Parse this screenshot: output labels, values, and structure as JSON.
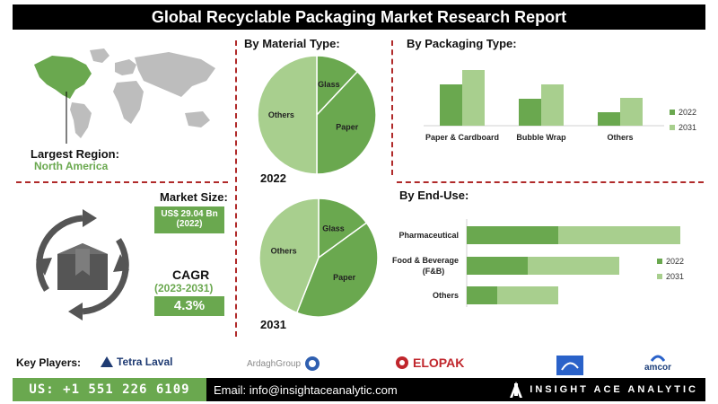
{
  "title": "Global Recyclable Packaging Market Research Report",
  "region": {
    "label": "Largest Region:",
    "value": "North America"
  },
  "market_size": {
    "label": "Market Size:",
    "value": "US$ 29.04 Bn",
    "year": "(2022)"
  },
  "cagr": {
    "label": "CAGR",
    "period": "(2023-2031)",
    "value": "4.3%"
  },
  "colors": {
    "dark_green": "#6aa84f",
    "light_green": "#a8cf8e",
    "dash_red": "#b02a2a"
  },
  "chart_data": [
    {
      "type": "pie",
      "title": "By Material Type:",
      "year_label": "2022",
      "labels": [
        "Glass",
        "Paper",
        "Others"
      ],
      "values": [
        12,
        38,
        50
      ]
    },
    {
      "type": "pie",
      "year_label": "2031",
      "labels": [
        "Glass",
        "Paper",
        "Others"
      ],
      "values": [
        15,
        41,
        44
      ]
    },
    {
      "type": "bar",
      "title": "By Packaging Type:",
      "categories": [
        "Paper & Cardboard",
        "Bubble Wrap",
        "Others"
      ],
      "series": [
        {
          "name": "2022",
          "values": [
            46,
            30,
            15
          ]
        },
        {
          "name": "2031",
          "values": [
            62,
            46,
            31
          ]
        }
      ],
      "ylim": [
        0,
        70
      ],
      "legend": "right"
    },
    {
      "type": "bar",
      "orientation": "horizontal",
      "title": "By End-Use:",
      "categories": [
        "Pharmaceutical",
        "Food & Beverage (F&B)",
        "Others"
      ],
      "series": [
        {
          "name": "2022",
          "values": [
            60,
            40,
            20
          ]
        },
        {
          "name": "2031",
          "values": [
            80,
            60,
            40
          ]
        }
      ],
      "stacked": true,
      "legend": "right"
    }
  ],
  "key_players": {
    "label": "Key Players:",
    "names": [
      "Tetra Laval",
      "ArdaghGroup",
      "ELOPAK",
      "amcor"
    ]
  },
  "footer": {
    "phone": "US: +1 551 226 6109",
    "email": "Email: info@insightaceanalytic.com",
    "brand": "INSIGHT ACE ANALYTIC"
  }
}
